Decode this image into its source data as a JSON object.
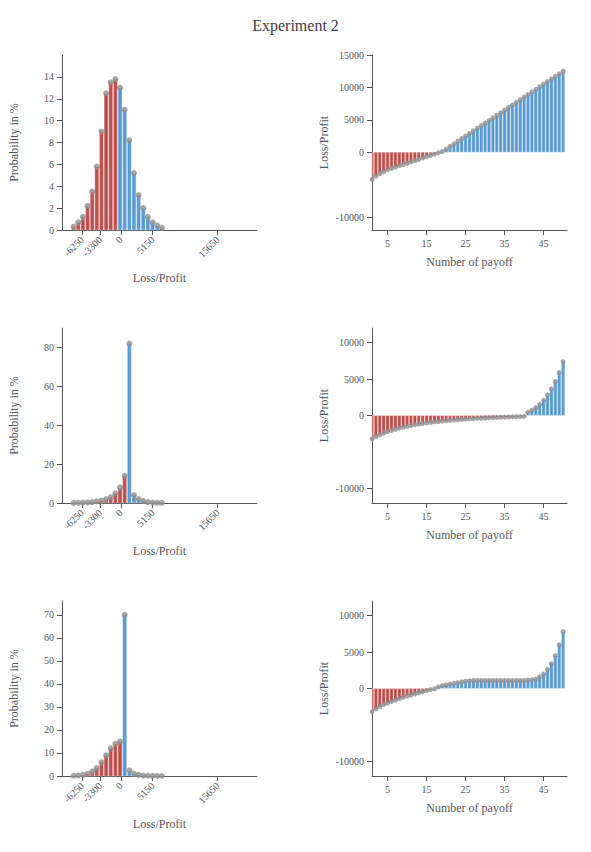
{
  "title": "Experiment 2",
  "chart_data": [
    {
      "type": "bar",
      "xlabel": "Loss/Profit",
      "ylabel": "Probability in %",
      "x": [
        -7625,
        -6875,
        -6125,
        -5375,
        -4625,
        -3875,
        -3125,
        -2375,
        -1625,
        -875,
        -125,
        625,
        1375,
        2125,
        2875,
        3625,
        4375,
        5125,
        5875,
        6625
      ],
      "series": [
        {
          "type": "bar",
          "colors": [
            "#c0504d",
            "#c0504d",
            "#c0504d",
            "#c0504d",
            "#c0504d",
            "#c0504d",
            "#c0504d",
            "#c0504d",
            "#c0504d",
            "#c0504d",
            "#5b9bd5",
            "#5b9bd5",
            "#5b9bd5",
            "#5b9bd5",
            "#5b9bd5",
            "#5b9bd5",
            "#5b9bd5",
            "#5b9bd5",
            "#5b9bd5",
            "#5b9bd5"
          ],
          "values": [
            0.3,
            0.7,
            1.2,
            2.2,
            3.5,
            5.8,
            9.0,
            12.5,
            13.5,
            13.8,
            13.0,
            11.0,
            8.2,
            5.2,
            3.2,
            2.0,
            1.2,
            0.7,
            0.4,
            0.2
          ]
        },
        {
          "type": "scatter",
          "marker": "circle",
          "color": "#909090",
          "values": [
            0.3,
            0.7,
            1.2,
            2.2,
            3.5,
            5.8,
            9.0,
            12.5,
            13.5,
            13.8,
            13.0,
            11.0,
            8.2,
            5.2,
            3.2,
            2.0,
            1.2,
            0.7,
            0.4,
            0.2
          ]
        }
      ],
      "xlim": [
        -9500,
        22000
      ],
      "xticks": [
        -6250,
        -3300,
        0,
        5150,
        15650
      ],
      "ylim": [
        0,
        16
      ],
      "yticks": [
        0,
        2,
        4,
        6,
        8,
        10,
        12,
        14
      ],
      "grid": false
    },
    {
      "type": "bar",
      "xlabel": "Number of payoff",
      "ylabel": "Loss/Profit",
      "x": [
        1,
        2,
        3,
        4,
        5,
        6,
        7,
        8,
        9,
        10,
        11,
        12,
        13,
        14,
        15,
        16,
        17,
        18,
        19,
        20,
        21,
        22,
        23,
        24,
        25,
        26,
        27,
        28,
        29,
        30,
        31,
        32,
        33,
        34,
        35,
        36,
        37,
        38,
        39,
        40,
        41,
        42,
        43,
        44,
        45,
        46,
        47,
        48,
        49,
        50
      ],
      "series": [
        {
          "type": "bar",
          "colors": [
            "#c0504d",
            "#c0504d",
            "#c0504d",
            "#c0504d",
            "#c0504d",
            "#c0504d",
            "#c0504d",
            "#c0504d",
            "#c0504d",
            "#c0504d",
            "#c0504d",
            "#c0504d",
            "#c0504d",
            "#c0504d",
            "#c0504d",
            "#c0504d",
            "#c0504d",
            "#c0504d",
            "#5b9bd5",
            "#5b9bd5",
            "#5b9bd5",
            "#5b9bd5",
            "#5b9bd5",
            "#5b9bd5",
            "#5b9bd5",
            "#5b9bd5",
            "#5b9bd5",
            "#5b9bd5",
            "#5b9bd5",
            "#5b9bd5",
            "#5b9bd5",
            "#5b9bd5",
            "#5b9bd5",
            "#5b9bd5",
            "#5b9bd5",
            "#5b9bd5",
            "#5b9bd5",
            "#5b9bd5",
            "#5b9bd5",
            "#5b9bd5",
            "#5b9bd5",
            "#5b9bd5",
            "#5b9bd5",
            "#5b9bd5",
            "#5b9bd5",
            "#5b9bd5",
            "#5b9bd5",
            "#5b9bd5",
            "#5b9bd5",
            "#5b9bd5"
          ],
          "values": [
            -4200,
            -3700,
            -3300,
            -3000,
            -2700,
            -2500,
            -2300,
            -2100,
            -1900,
            -1700,
            -1500,
            -1300,
            -1100,
            -900,
            -700,
            -500,
            -300,
            -100,
            100,
            500,
            900,
            1300,
            1700,
            2100,
            2500,
            2900,
            3300,
            3700,
            4100,
            4500,
            4900,
            5300,
            5700,
            6100,
            6500,
            6900,
            7300,
            7700,
            8100,
            8500,
            8900,
            9300,
            9700,
            10100,
            10500,
            10900,
            11300,
            11700,
            12100,
            12500
          ]
        },
        {
          "type": "scatter",
          "marker": "circle",
          "color": "#909090",
          "values": [
            -4200,
            -3700,
            -3300,
            -3000,
            -2700,
            -2500,
            -2300,
            -2100,
            -1900,
            -1700,
            -1500,
            -1300,
            -1100,
            -900,
            -700,
            -500,
            -300,
            -100,
            100,
            500,
            900,
            1300,
            1700,
            2100,
            2500,
            2900,
            3300,
            3700,
            4100,
            4500,
            4900,
            5300,
            5700,
            6100,
            6500,
            6900,
            7300,
            7700,
            8100,
            8500,
            8900,
            9300,
            9700,
            10100,
            10500,
            10900,
            11300,
            11700,
            12100,
            12500
          ]
        }
      ],
      "xlim": [
        1,
        51
      ],
      "xticks": [
        5,
        15,
        25,
        35,
        45
      ],
      "ylim": [
        -12000,
        15000
      ],
      "yticks": [
        -10000,
        0,
        5000,
        10000,
        15000
      ],
      "grid": false
    },
    {
      "type": "bar",
      "xlabel": "Loss/Profit",
      "ylabel": "Probability in %",
      "x": [
        -7625,
        -6875,
        -6125,
        -5375,
        -4625,
        -3875,
        -3125,
        -2375,
        -1625,
        -875,
        -125,
        625,
        1375,
        2125,
        2875,
        3625,
        4375,
        5125,
        5875,
        6625
      ],
      "series": [
        {
          "type": "bar",
          "colors": [
            "#c0504d",
            "#c0504d",
            "#c0504d",
            "#c0504d",
            "#c0504d",
            "#c0504d",
            "#c0504d",
            "#c0504d",
            "#c0504d",
            "#c0504d",
            "#c0504d",
            "#c0504d",
            "#5b9bd5",
            "#5b9bd5",
            "#5b9bd5",
            "#5b9bd5",
            "#5b9bd5",
            "#5b9bd5",
            "#5b9bd5",
            "#5b9bd5"
          ],
          "values": [
            0.05,
            0.1,
            0.2,
            0.3,
            0.5,
            0.8,
            1.2,
            2.0,
            3.0,
            5.0,
            8.0,
            14.0,
            82.0,
            4.0,
            2.0,
            1.0,
            0.5,
            0.2,
            0.1,
            0.05
          ]
        },
        {
          "type": "scatter",
          "marker": "circle",
          "color": "#909090",
          "values": [
            0.05,
            0.1,
            0.2,
            0.3,
            0.5,
            0.8,
            1.2,
            2.0,
            3.0,
            5.0,
            8.0,
            14.0,
            82.0,
            4.0,
            2.0,
            1.0,
            0.5,
            0.2,
            0.1,
            0.05
          ]
        }
      ],
      "xlim": [
        -9500,
        22000
      ],
      "xticks": [
        -6250,
        -3300,
        0,
        5150,
        15650
      ],
      "ylim": [
        0,
        90
      ],
      "yticks": [
        0,
        20,
        40,
        60,
        80
      ],
      "grid": false
    },
    {
      "type": "bar",
      "xlabel": "Number of payoff",
      "ylabel": "Loss/Profit",
      "x": [
        1,
        2,
        3,
        4,
        5,
        6,
        7,
        8,
        9,
        10,
        11,
        12,
        13,
        14,
        15,
        16,
        17,
        18,
        19,
        20,
        21,
        22,
        23,
        24,
        25,
        26,
        27,
        28,
        29,
        30,
        31,
        32,
        33,
        34,
        35,
        36,
        37,
        38,
        39,
        40,
        41,
        42,
        43,
        44,
        45,
        46,
        47,
        48,
        49,
        50
      ],
      "series": [
        {
          "type": "bar",
          "colors": [
            "#c0504d",
            "#c0504d",
            "#c0504d",
            "#c0504d",
            "#c0504d",
            "#c0504d",
            "#c0504d",
            "#c0504d",
            "#c0504d",
            "#c0504d",
            "#c0504d",
            "#c0504d",
            "#c0504d",
            "#c0504d",
            "#c0504d",
            "#c0504d",
            "#c0504d",
            "#c0504d",
            "#c0504d",
            "#c0504d",
            "#c0504d",
            "#c0504d",
            "#c0504d",
            "#c0504d",
            "#c0504d",
            "#c0504d",
            "#c0504d",
            "#c0504d",
            "#c0504d",
            "#c0504d",
            "#c0504d",
            "#c0504d",
            "#c0504d",
            "#c0504d",
            "#c0504d",
            "#c0504d",
            "#c0504d",
            "#c0504d",
            "#c0504d",
            "#c0504d",
            "#5b9bd5",
            "#5b9bd5",
            "#5b9bd5",
            "#5b9bd5",
            "#5b9bd5",
            "#5b9bd5",
            "#5b9bd5",
            "#5b9bd5",
            "#5b9bd5",
            "#5b9bd5"
          ],
          "values": [
            -3200,
            -2900,
            -2650,
            -2430,
            -2230,
            -2050,
            -1890,
            -1740,
            -1610,
            -1490,
            -1380,
            -1280,
            -1185,
            -1100,
            -1020,
            -950,
            -885,
            -825,
            -770,
            -718,
            -670,
            -625,
            -582,
            -542,
            -505,
            -470,
            -436,
            -404,
            -374,
            -345,
            -318,
            -292,
            -268,
            -245,
            -222,
            -201,
            -181,
            -162,
            -144,
            -128,
            430,
            720,
            1080,
            1520,
            2080,
            2800,
            3650,
            4660,
            5900,
            7400
          ]
        },
        {
          "type": "scatter",
          "marker": "circle",
          "color": "#909090",
          "values": [
            -3200,
            -2900,
            -2650,
            -2430,
            -2230,
            -2050,
            -1890,
            -1740,
            -1610,
            -1490,
            -1380,
            -1280,
            -1185,
            -1100,
            -1020,
            -950,
            -885,
            -825,
            -770,
            -718,
            -670,
            -625,
            -582,
            -542,
            -505,
            -470,
            -436,
            -404,
            -374,
            -345,
            -318,
            -292,
            -268,
            -245,
            -222,
            -201,
            -181,
            -162,
            -144,
            -128,
            430,
            720,
            1080,
            1520,
            2080,
            2800,
            3650,
            4660,
            5900,
            7400
          ]
        }
      ],
      "xlim": [
        1,
        51
      ],
      "xticks": [
        5,
        15,
        25,
        35,
        45
      ],
      "ylim": [
        -12000,
        12000
      ],
      "yticks": [
        -10000,
        0,
        5000,
        10000
      ],
      "grid": false
    },
    {
      "type": "bar",
      "xlabel": "Loss/Profit",
      "ylabel": "Probability in %",
      "x": [
        -7625,
        -6875,
        -6125,
        -5375,
        -4625,
        -3875,
        -3125,
        -2375,
        -1625,
        -875,
        -125,
        625,
        1375,
        2125,
        2875,
        3625,
        4375,
        5125,
        5875,
        6625
      ],
      "series": [
        {
          "type": "bar",
          "colors": [
            "#c0504d",
            "#c0504d",
            "#c0504d",
            "#c0504d",
            "#c0504d",
            "#c0504d",
            "#c0504d",
            "#c0504d",
            "#c0504d",
            "#c0504d",
            "#c0504d",
            "#5b9bd5",
            "#5b9bd5",
            "#5b9bd5",
            "#5b9bd5",
            "#5b9bd5",
            "#5b9bd5",
            "#5b9bd5",
            "#5b9bd5",
            "#5b9bd5"
          ],
          "values": [
            0.1,
            0.2,
            0.5,
            1.0,
            2.0,
            3.5,
            6.0,
            9.0,
            12.0,
            14.0,
            15.0,
            70.0,
            2.5,
            1.0,
            0.5,
            0.2,
            0.1,
            0.05,
            0.02,
            0.01
          ]
        },
        {
          "type": "scatter",
          "marker": "circle",
          "color": "#909090",
          "values": [
            0.1,
            0.2,
            0.5,
            1.0,
            2.0,
            3.5,
            6.0,
            9.0,
            12.0,
            14.0,
            15.0,
            70.0,
            2.5,
            1.0,
            0.5,
            0.2,
            0.1,
            0.05,
            0.02,
            0.01
          ]
        }
      ],
      "xlim": [
        -9500,
        22000
      ],
      "xticks": [
        -6250,
        -3300,
        0,
        5150,
        15650
      ],
      "ylim": [
        0,
        76
      ],
      "yticks": [
        0,
        10,
        20,
        30,
        40,
        50,
        60,
        70
      ],
      "grid": false
    },
    {
      "type": "bar",
      "xlabel": "Number of payoff",
      "ylabel": "Loss/Profit",
      "x": [
        1,
        2,
        3,
        4,
        5,
        6,
        7,
        8,
        9,
        10,
        11,
        12,
        13,
        14,
        15,
        16,
        17,
        18,
        19,
        20,
        21,
        22,
        23,
        24,
        25,
        26,
        27,
        28,
        29,
        30,
        31,
        32,
        33,
        34,
        35,
        36,
        37,
        38,
        39,
        40,
        41,
        42,
        43,
        44,
        45,
        46,
        47,
        48,
        49,
        50
      ],
      "series": [
        {
          "type": "bar",
          "colors": [
            "#c0504d",
            "#c0504d",
            "#c0504d",
            "#c0504d",
            "#c0504d",
            "#c0504d",
            "#c0504d",
            "#c0504d",
            "#c0504d",
            "#c0504d",
            "#c0504d",
            "#c0504d",
            "#c0504d",
            "#c0504d",
            "#c0504d",
            "#c0504d",
            "#c0504d",
            "#5b9bd5",
            "#5b9bd5",
            "#5b9bd5",
            "#5b9bd5",
            "#5b9bd5",
            "#5b9bd5",
            "#5b9bd5",
            "#5b9bd5",
            "#5b9bd5",
            "#5b9bd5",
            "#5b9bd5",
            "#5b9bd5",
            "#5b9bd5",
            "#5b9bd5",
            "#5b9bd5",
            "#5b9bd5",
            "#5b9bd5",
            "#5b9bd5",
            "#5b9bd5",
            "#5b9bd5",
            "#5b9bd5",
            "#5b9bd5",
            "#5b9bd5",
            "#5b9bd5",
            "#5b9bd5",
            "#5b9bd5",
            "#5b9bd5",
            "#5b9bd5",
            "#5b9bd5",
            "#5b9bd5",
            "#5b9bd5",
            "#5b9bd5",
            "#5b9bd5"
          ],
          "values": [
            -3200,
            -2800,
            -2500,
            -2200,
            -2000,
            -1800,
            -1600,
            -1400,
            -1200,
            -1050,
            -900,
            -750,
            -600,
            -450,
            -300,
            -150,
            -50,
            200,
            400,
            500,
            600,
            700,
            800,
            900,
            1000,
            1050,
            1100,
            1100,
            1100,
            1100,
            1100,
            1100,
            1100,
            1100,
            1100,
            1100,
            1100,
            1100,
            1100,
            1100,
            1150,
            1200,
            1300,
            1600,
            2000,
            2600,
            3400,
            4500,
            6000,
            7800
          ]
        },
        {
          "type": "scatter",
          "marker": "circle",
          "color": "#909090",
          "values": [
            -3200,
            -2800,
            -2500,
            -2200,
            -2000,
            -1800,
            -1600,
            -1400,
            -1200,
            -1050,
            -900,
            -750,
            -600,
            -450,
            -300,
            -150,
            -50,
            200,
            400,
            500,
            600,
            700,
            800,
            900,
            1000,
            1050,
            1100,
            1100,
            1100,
            1100,
            1100,
            1100,
            1100,
            1100,
            1100,
            1100,
            1100,
            1100,
            1100,
            1100,
            1150,
            1200,
            1300,
            1600,
            2000,
            2600,
            3400,
            4500,
            6000,
            7800
          ]
        }
      ],
      "xlim": [
        1,
        51
      ],
      "xticks": [
        5,
        15,
        25,
        35,
        45
      ],
      "ylim": [
        -12000,
        12000
      ],
      "yticks": [
        -10000,
        0,
        5000,
        10000
      ],
      "grid": false
    }
  ]
}
